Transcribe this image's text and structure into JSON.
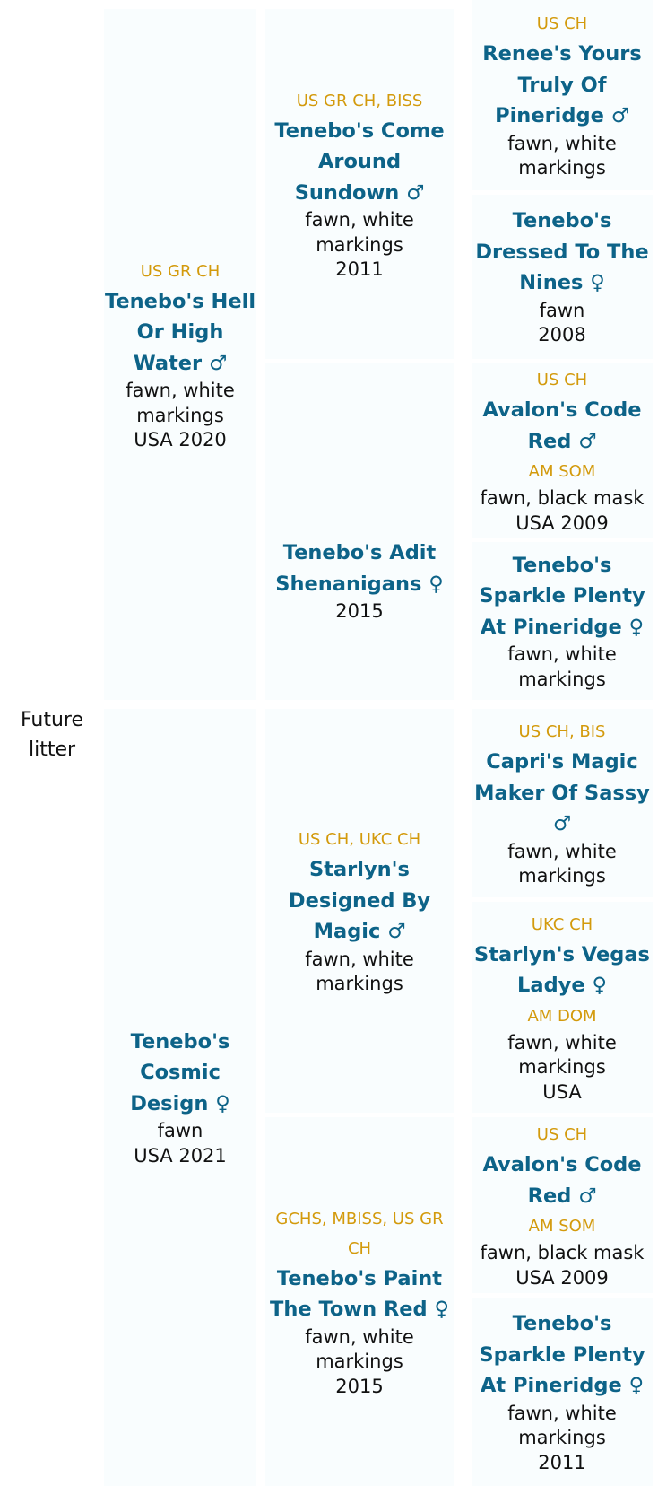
{
  "subject": {
    "line1": "Future",
    "line2": "litter"
  },
  "colors": {
    "title": "#d39a0c",
    "name": "#0d6388",
    "text": "#111111",
    "cell_bg": "#f9fdfe"
  },
  "gen1": [
    {
      "title": "US GR CH",
      "name": "Tenebo's Hell Or High Water",
      "sex": "♂",
      "color": "fawn, white markings",
      "meta": "USA 2020"
    },
    {
      "title": "",
      "name": "Tenebo's Cosmic Design",
      "sex": "♀",
      "color": "fawn",
      "meta": "USA 2021"
    }
  ],
  "gen2": [
    {
      "title": "US GR CH, BISS",
      "name": "Tenebo's Come Around Sundown",
      "sex": "♂",
      "color": "fawn, white markings",
      "meta": "2011"
    },
    {
      "title": "",
      "name": "Tenebo's Adit Shenanigans",
      "sex": "♀",
      "color": "",
      "meta": "2015"
    },
    {
      "title": "US CH, UKC CH",
      "name": "Starlyn's Designed By Magic",
      "sex": "♂",
      "color": "fawn, white markings",
      "meta": ""
    },
    {
      "title": "GCHS, MBISS, US GR CH",
      "name": "Tenebo's Paint The Town Red",
      "sex": "♀",
      "color": "fawn, white markings",
      "meta": "2015"
    }
  ],
  "gen3": [
    {
      "title": "US CH",
      "name": "Renee's Yours Truly Of Pineridge",
      "sex": "♂",
      "title2": "",
      "color": "fawn, white markings",
      "meta": ""
    },
    {
      "title": "",
      "name": "Tenebo's Dressed To The Nines",
      "sex": "♀",
      "title2": "",
      "color": "fawn",
      "meta": "2008"
    },
    {
      "title": "US CH",
      "name": "Avalon's Code Red",
      "sex": "♂",
      "title2": "AM SOM",
      "color": "fawn, black mask",
      "meta": "USA 2009"
    },
    {
      "title": "",
      "name": "Tenebo's Sparkle Plenty At Pineridge",
      "sex": "♀",
      "title2": "",
      "color": "fawn, white markings",
      "meta": ""
    },
    {
      "title": "US CH, BIS",
      "name": "Capri's Magic Maker Of Sassy",
      "sex": "♂",
      "title2": "",
      "color": "fawn, white markings",
      "meta": ""
    },
    {
      "title": "UKC CH",
      "name": "Starlyn's Vegas Ladye",
      "sex": "♀",
      "title2": "AM DOM",
      "color": "fawn, white markings",
      "meta": "USA"
    },
    {
      "title": "US CH",
      "name": "Avalon's Code Red",
      "sex": "♂",
      "title2": "AM SOM",
      "color": "fawn, black mask",
      "meta": "USA 2009"
    },
    {
      "title": "",
      "name": "Tenebo's Sparkle Plenty At Pineridge",
      "sex": "♀",
      "title2": "",
      "color": "fawn, white markings",
      "meta": "2011"
    }
  ]
}
